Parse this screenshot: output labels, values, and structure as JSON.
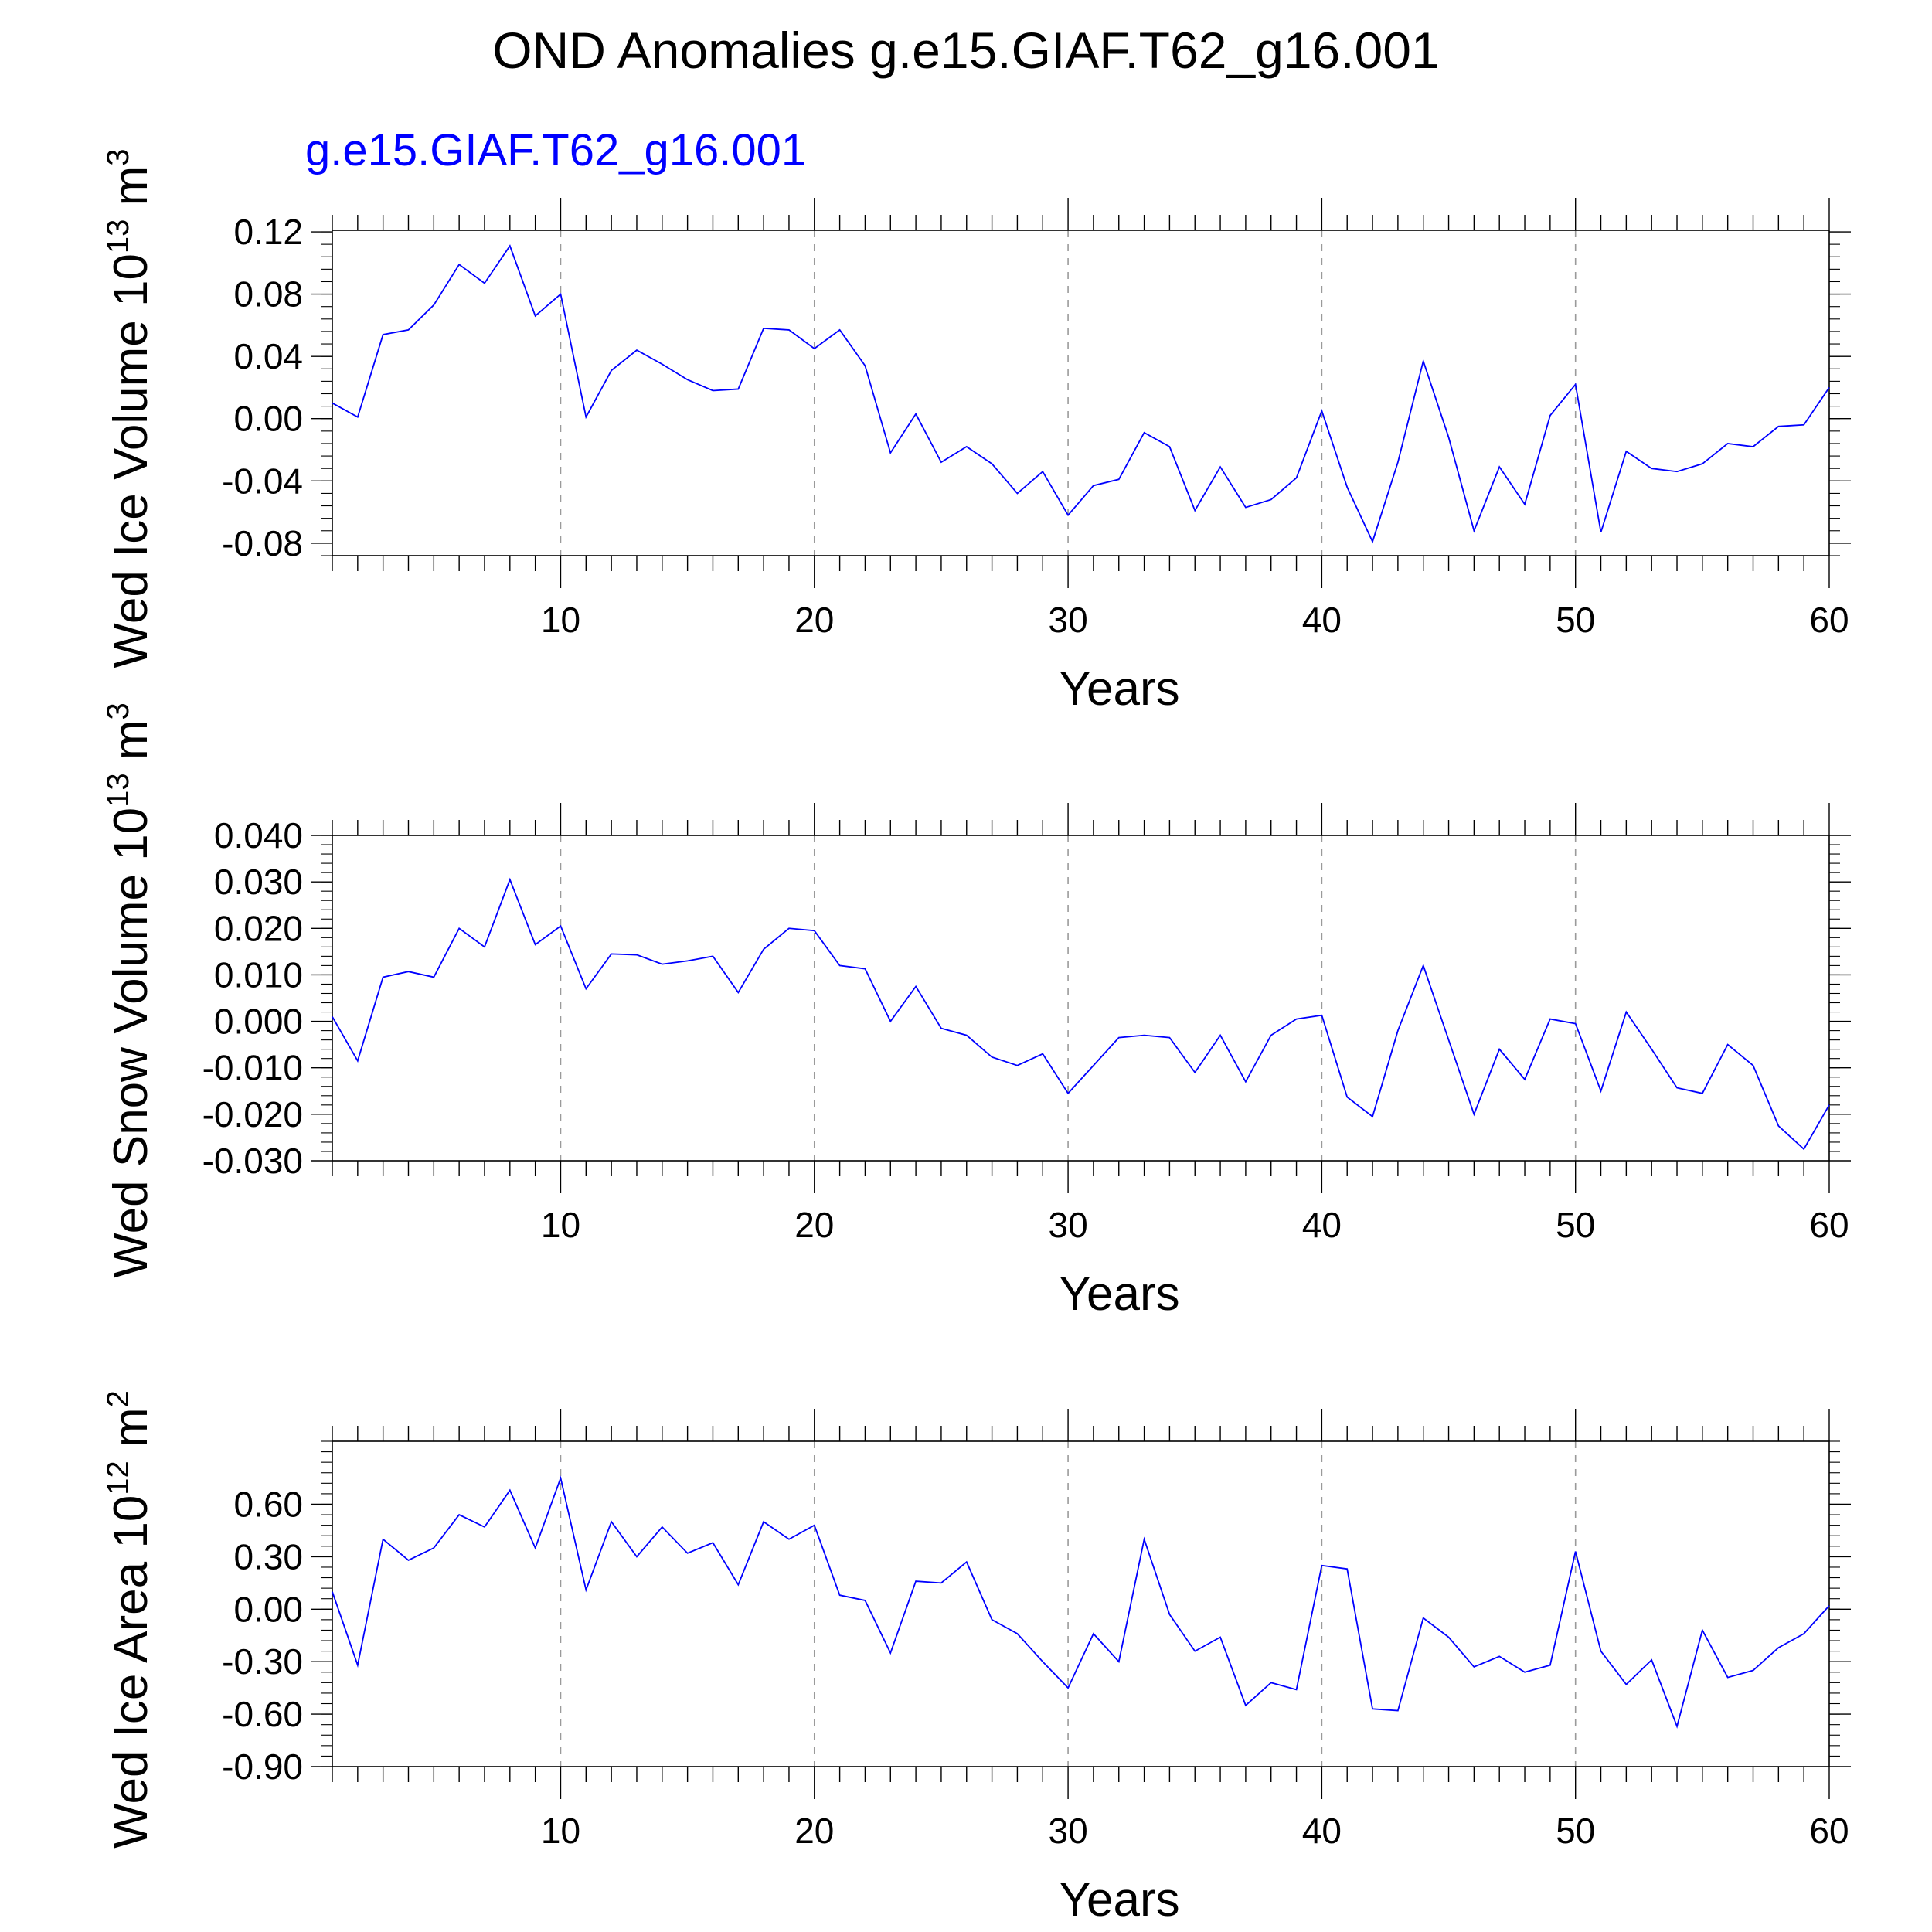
{
  "title": "OND Anomalies g.e15.GIAF.T62_g16.001",
  "subtitle": "g.e15.GIAF.T62_g16.001",
  "colors": {
    "series": "#0000ff",
    "axes": "#000000",
    "grid": "#9a9a9a",
    "subtitle": "#0000ff"
  },
  "chart_data": [
    {
      "type": "line",
      "xlabel": "Years",
      "ylabel": "Wed Ice Volume 10",
      "ylabel_exp": "13",
      "ylabel_unit": " m",
      "ylabel_unit_exp": "3",
      "xlim": [
        1,
        60
      ],
      "ylim": [
        -0.088,
        0.121
      ],
      "xticks": [
        10,
        20,
        30,
        40,
        50,
        60
      ],
      "yticks": [
        "0.12",
        "0.08",
        "0.04",
        "0.00",
        "-0.04",
        "-0.08"
      ],
      "ytick_values": [
        0.12,
        0.08,
        0.04,
        0.0,
        -0.04,
        -0.08
      ],
      "grid": "x-dashed",
      "series": [
        {
          "values": [
            0.01,
            0.001,
            0.054,
            0.057,
            0.073,
            0.099,
            0.087,
            0.111,
            0.066,
            0.08,
            0.001,
            0.031,
            0.044,
            0.035,
            0.025,
            0.018,
            0.019,
            0.058,
            0.057,
            0.045,
            0.057,
            0.034,
            -0.022,
            0.003,
            -0.028,
            -0.018,
            -0.029,
            -0.048,
            -0.034,
            -0.062,
            -0.043,
            -0.039,
            -0.009,
            -0.018,
            -0.059,
            -0.031,
            -0.057,
            -0.052,
            -0.038,
            0.005,
            -0.044,
            -0.079,
            -0.028,
            0.037,
            -0.012,
            -0.072,
            -0.031,
            -0.055,
            0.002,
            0.022,
            -0.073,
            -0.021,
            -0.032,
            -0.034,
            -0.029,
            -0.016,
            -0.018,
            -0.005,
            -0.004,
            0.02
          ]
        }
      ]
    },
    {
      "type": "line",
      "xlabel": "Years",
      "ylabel": "Wed Snow Volume 10",
      "ylabel_exp": "13",
      "ylabel_unit": " m",
      "ylabel_unit_exp": "3",
      "xlim": [
        1,
        60
      ],
      "ylim": [
        -0.03,
        0.04
      ],
      "xticks": [
        10,
        20,
        30,
        40,
        50,
        60
      ],
      "yticks": [
        "0.040",
        "0.030",
        "0.020",
        "0.010",
        "0.000",
        "-0.010",
        "-0.020",
        "-0.030"
      ],
      "ytick_values": [
        0.04,
        0.03,
        0.02,
        0.01,
        0.0,
        -0.01,
        -0.02,
        -0.03
      ],
      "grid": "x-dashed",
      "series": [
        {
          "values": [
            0.001,
            -0.0085,
            0.0095,
            0.0107,
            0.0095,
            0.02,
            0.016,
            0.0305,
            0.0165,
            0.0205,
            0.007,
            0.0145,
            0.0143,
            0.0123,
            0.013,
            0.014,
            0.0062,
            0.0155,
            0.02,
            0.0195,
            0.012,
            0.0113,
            0.0,
            0.0075,
            -0.0015,
            -0.003,
            -0.0077,
            -0.0095,
            -0.007,
            -0.0155,
            -0.0095,
            -0.0035,
            -0.003,
            -0.0035,
            -0.011,
            -0.003,
            -0.013,
            -0.003,
            0.0005,
            0.0013,
            -0.0163,
            -0.0205,
            -0.002,
            0.012,
            -0.004,
            -0.02,
            -0.006,
            -0.0125,
            0.0005,
            -0.0005,
            -0.015,
            0.002,
            -0.006,
            -0.0143,
            -0.0155,
            -0.005,
            -0.0095,
            -0.0225,
            -0.0275,
            -0.018
          ]
        }
      ]
    },
    {
      "type": "line",
      "xlabel": "Years",
      "ylabel": "Wed Ice Area 10",
      "ylabel_exp": "12",
      "ylabel_unit": " m",
      "ylabel_unit_exp": "2",
      "xlim": [
        1,
        60
      ],
      "ylim": [
        -0.9,
        0.96
      ],
      "xticks": [
        10,
        20,
        30,
        40,
        50,
        60
      ],
      "yticks": [
        "0.60",
        "0.30",
        "0.00",
        "-0.30",
        "-0.60",
        "-0.90"
      ],
      "ytick_values": [
        0.6,
        0.3,
        0.0,
        -0.3,
        -0.6,
        -0.9
      ],
      "grid": "x-dashed",
      "series": [
        {
          "values": [
            0.1,
            -0.32,
            0.4,
            0.28,
            0.35,
            0.54,
            0.47,
            0.68,
            0.35,
            0.75,
            0.11,
            0.5,
            0.3,
            0.47,
            0.32,
            0.38,
            0.14,
            0.5,
            0.4,
            0.48,
            0.08,
            0.05,
            -0.25,
            0.16,
            0.15,
            0.27,
            -0.06,
            -0.14,
            -0.3,
            -0.45,
            -0.14,
            -0.3,
            0.4,
            -0.03,
            -0.24,
            -0.16,
            -0.55,
            -0.42,
            -0.46,
            0.25,
            0.23,
            -0.57,
            -0.58,
            -0.05,
            -0.16,
            -0.33,
            -0.27,
            -0.36,
            -0.32,
            0.33,
            -0.24,
            -0.43,
            -0.29,
            -0.67,
            -0.12,
            -0.39,
            -0.35,
            -0.22,
            -0.14,
            0.02
          ]
        }
      ]
    }
  ]
}
